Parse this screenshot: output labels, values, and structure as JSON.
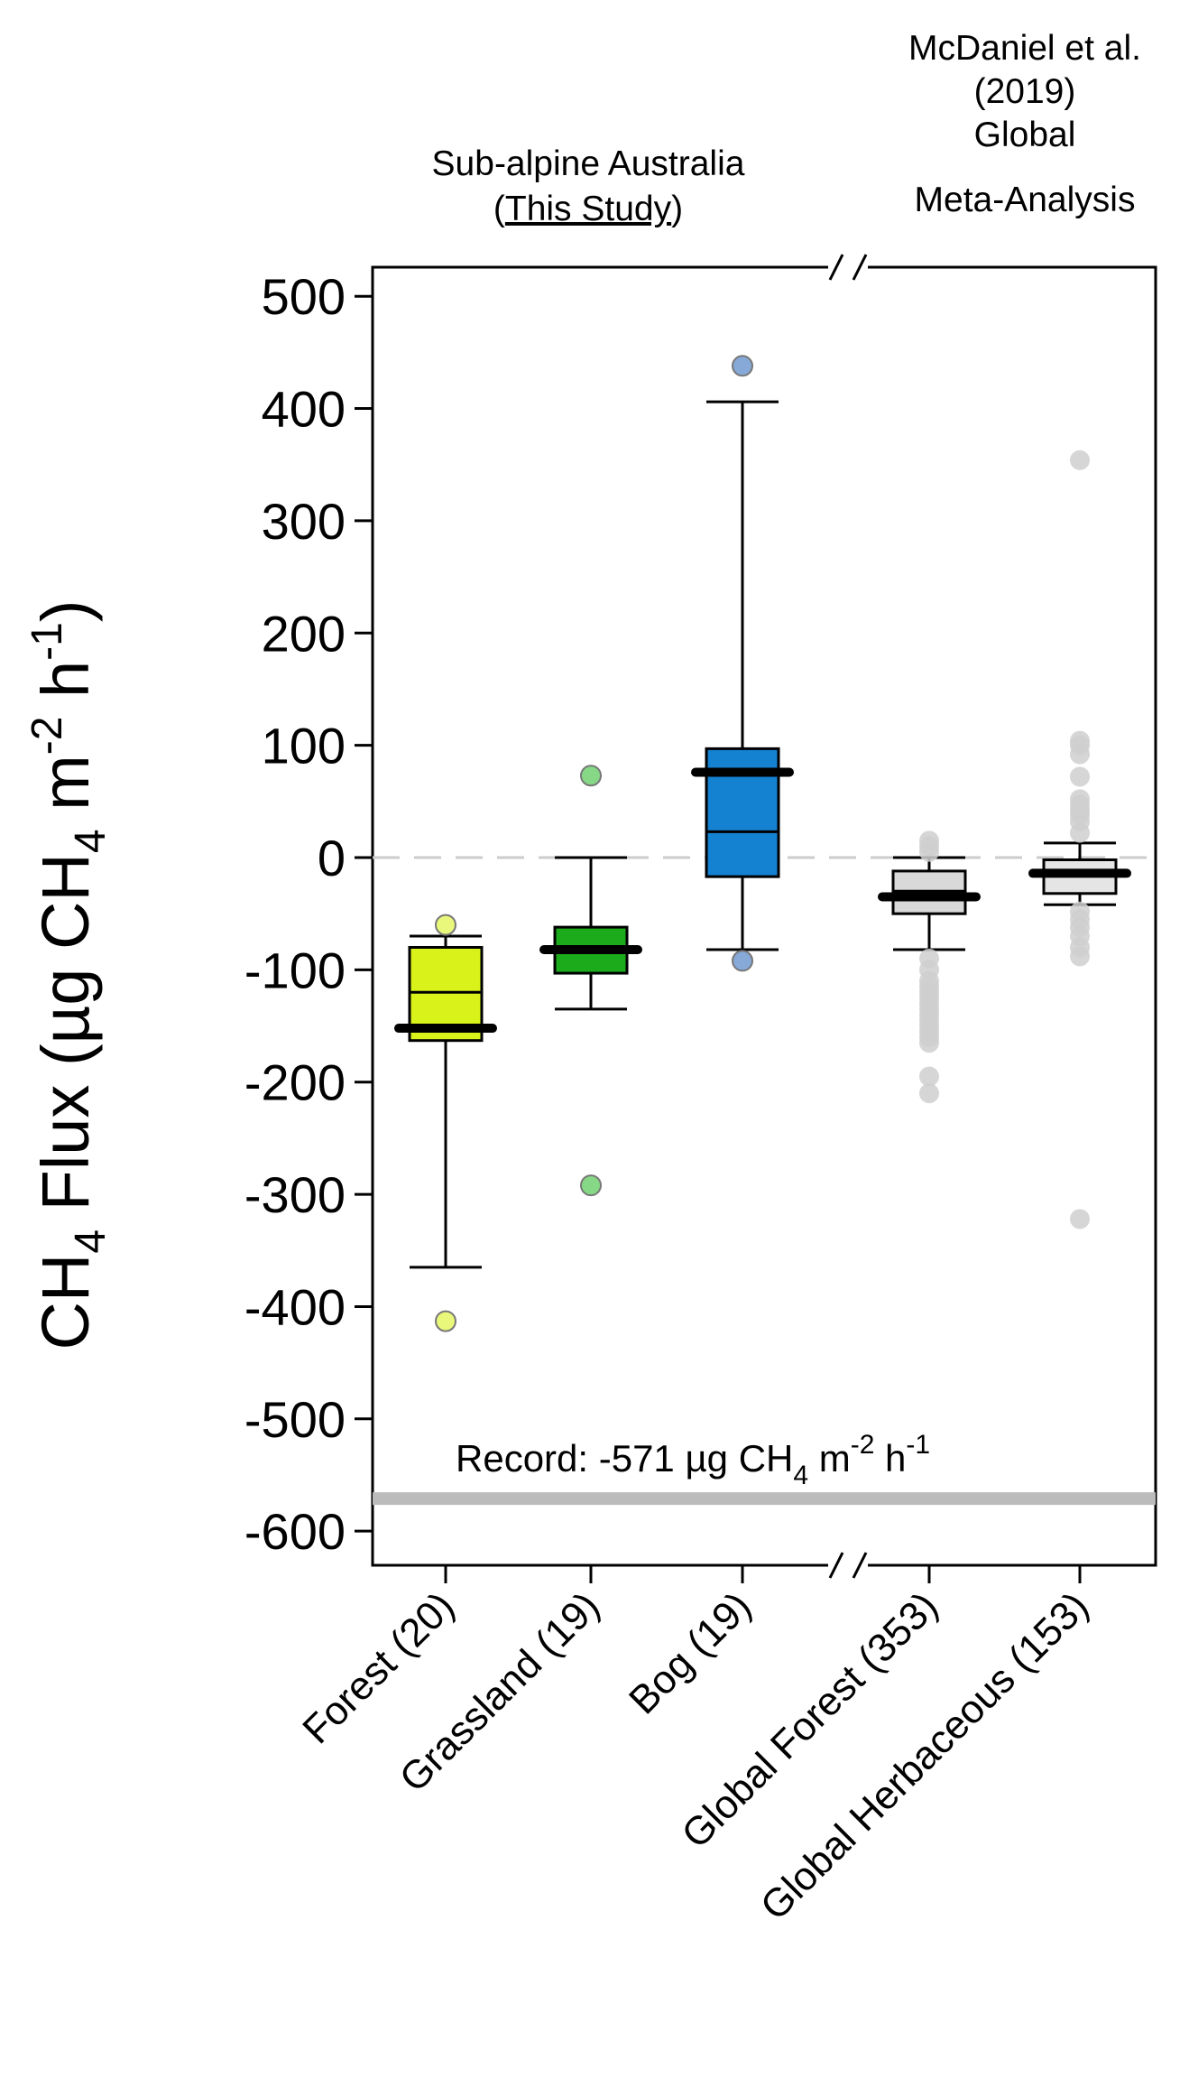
{
  "chart_data": {
    "type": "box",
    "ylabel": {
      "base": "CH",
      "sub": "4",
      "rest": " Flux (µg CH",
      "sub2": "4",
      "unit_m": " m",
      "sup_m": "-2",
      "unit_h": " h",
      "sup_h": "-1",
      "close": ")"
    },
    "ylim": [
      -620,
      520
    ],
    "yticks": [
      500,
      400,
      300,
      200,
      100,
      0,
      -100,
      -200,
      -300,
      -400,
      -500,
      -600
    ],
    "ytick_labels": [
      "500",
      "400",
      "300",
      "200",
      "100",
      "0",
      "-100",
      "-200",
      "-300",
      "-400",
      "-500",
      "-600"
    ],
    "group_headers": {
      "this_study_line1": "Sub-alpine Australia",
      "this_study_line2_open": "(",
      "this_study_line2_link": "This Study",
      "this_study_line2_close": ")",
      "global_lines": [
        "McDaniel et al.",
        "(2019)",
        "Global",
        "Meta-Analysis"
      ]
    },
    "reference_line": {
      "y": 0,
      "style": "dashed",
      "color": "#cccccc"
    },
    "record": {
      "value": -571,
      "color": "#bbbbbb",
      "label_prefix": "Record: -571 µg CH",
      "label_sub": "4",
      "label_m": " m",
      "label_sup_m": "-2",
      "label_h": " h",
      "label_sup_h": "-1"
    },
    "axis_break_symbol": "//",
    "series": [
      {
        "name": "Forest (20)",
        "color": "#d8f21a",
        "whisker_low": -365,
        "q1": -163,
        "median": -120,
        "q3": -80,
        "whisker_high": -70,
        "mean": -152,
        "outliers": [
          -60,
          -413
        ],
        "outlier_color": "#e9f77a"
      },
      {
        "name": "Grassland (19)",
        "color": "#1bab1b",
        "whisker_low": -135,
        "q1": -103,
        "median": -82,
        "q3": -62,
        "whisker_high": 0,
        "mean": -82,
        "outliers": [
          73,
          -292
        ],
        "outlier_color": "#86d886"
      },
      {
        "name": "Bog (19)",
        "color": "#1581d1",
        "whisker_low": -82,
        "q1": -17,
        "median": 23,
        "q3": 97,
        "whisker_high": 406,
        "mean": 76,
        "outliers": [
          438,
          -92
        ],
        "outlier_color": "#86a9d8"
      },
      {
        "name": "Global Forest (353)",
        "color": "#d9d9d9",
        "whisker_low": -82,
        "q1": -50,
        "median": -30,
        "q3": -12,
        "whisker_high": 0,
        "mean": -35,
        "outliers": [
          15,
          10,
          5,
          -90,
          -100,
          -110,
          -115,
          -120,
          -125,
          -130,
          -135,
          -140,
          -145,
          -150,
          -155,
          -160,
          -165,
          -195,
          -210
        ],
        "outlier_color": "#cfcfcf"
      },
      {
        "name": "Global Herbaceous (153)",
        "color": "#e5e5e5",
        "whisker_low": -42,
        "q1": -32,
        "median": -15,
        "q3": -2,
        "whisker_high": 13,
        "mean": -14,
        "outliers": [
          354,
          104,
          100,
          92,
          72,
          52,
          47,
          42,
          38,
          32,
          22,
          -48,
          -55,
          -62,
          -70,
          -80,
          -88,
          -322
        ],
        "outlier_color": "#cfcfcf"
      }
    ]
  }
}
